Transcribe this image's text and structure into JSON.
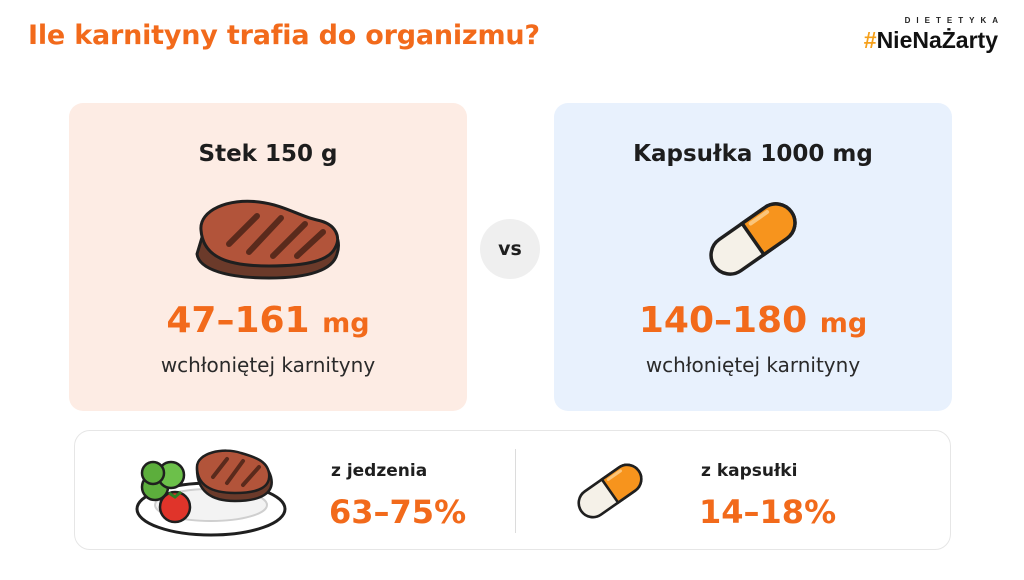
{
  "header": {
    "title": "Ile karnityny trafia do organizmu?",
    "brand_small": "DIETETYKA",
    "brand_hash": "#",
    "brand_main": "NieNaŻarty"
  },
  "left_card": {
    "title": "Stek 150 g",
    "icon": "steak-icon",
    "value": "47–161",
    "unit": "mg",
    "subtitle": "wchłoniętej karnityny"
  },
  "vs_label": "vs",
  "right_card": {
    "title": "Kapsułka 1000 mg",
    "icon": "capsule-icon",
    "value": "140–180",
    "unit": "mg",
    "subtitle": "wchłoniętej karnityny"
  },
  "bottom": {
    "food": {
      "icon": "plate-steak-icon",
      "label": "z jedzenia",
      "value": "63–75%"
    },
    "capsule": {
      "icon": "capsule-icon",
      "label": "z kapsułki",
      "value": "14–18%"
    }
  },
  "colors": {
    "accent": "#f26a1b",
    "left_bg": "#fdece4",
    "right_bg": "#e8f1fd",
    "brand_hash": "#f6a01a"
  }
}
